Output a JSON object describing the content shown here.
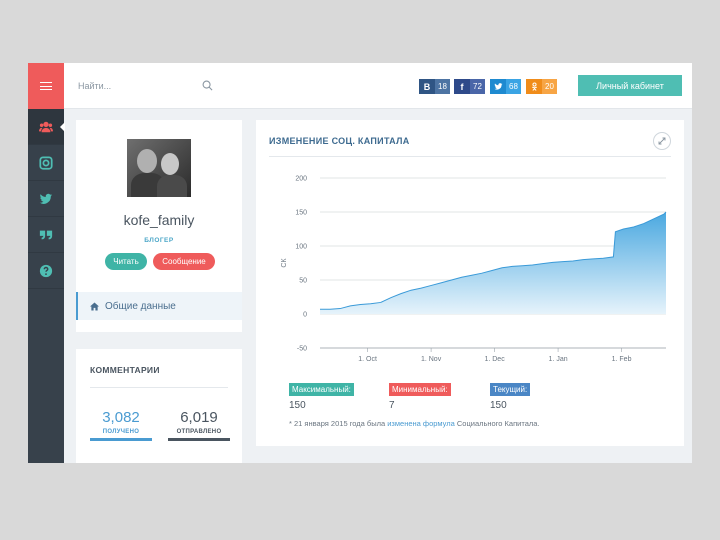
{
  "topbar": {
    "search_placeholder": "Найти...",
    "social": {
      "vk": {
        "icon": "В",
        "count": "18"
      },
      "fb": {
        "icon": "f",
        "count": "72"
      },
      "tw": {
        "icon": "t",
        "count": "68"
      },
      "ok": {
        "icon": "ok",
        "count": "20"
      }
    },
    "cabinet_label": "Личный кабинет"
  },
  "sidebar": {
    "items": [
      "users-icon",
      "instagram-icon",
      "twitter-icon",
      "quote-icon",
      "help-icon"
    ]
  },
  "profile": {
    "username": "kofe_family",
    "role": "БЛОГЕР",
    "read_label": "Читать",
    "message_label": "Сообщение",
    "general_label": "Общие данные"
  },
  "comments": {
    "title": "КОММЕНТАРИИ",
    "received_value": "3,082",
    "received_label": "ПОЛУЧЕНО",
    "sent_value": "6,019",
    "sent_label": "ОТПРАВЛЕНО"
  },
  "chart_card": {
    "title": "ИЗМЕНЕНИЕ СОЦ. КАПИТАЛА",
    "max_label": "Максимальный:",
    "max_value": "150",
    "min_label": "Минимальный:",
    "min_value": "7",
    "cur_label": "Текущий:",
    "cur_value": "150",
    "footnote_pre": "* 21 января 2015 года была ",
    "footnote_link": "изменена формула",
    "footnote_post": " Социального Капитала."
  },
  "chart_data": {
    "type": "area",
    "ylabel": "СК",
    "ylim": [
      -50,
      200
    ],
    "yticks": [
      -50,
      0,
      50,
      100,
      150,
      200
    ],
    "xticks": [
      "1. Oct",
      "1. Nov",
      "1. Dec",
      "1. Jan",
      "1. Feb"
    ],
    "x": [
      0,
      10,
      20,
      30,
      40,
      50,
      60,
      70,
      80,
      90,
      100,
      110,
      120,
      130,
      140,
      150,
      160,
      170,
      180,
      190,
      200,
      210,
      220,
      230,
      240,
      250,
      260,
      270,
      280,
      290,
      292,
      300,
      310,
      320,
      330,
      340,
      342
    ],
    "values": [
      7,
      7,
      8,
      12,
      14,
      15,
      17,
      24,
      30,
      35,
      38,
      42,
      46,
      50,
      54,
      57,
      60,
      64,
      68,
      70,
      71,
      72,
      74,
      76,
      77,
      78,
      80,
      81,
      82,
      84,
      121,
      125,
      128,
      133,
      140,
      147,
      150
    ],
    "grid": true,
    "colors": {
      "fill_top": "#4aa8e0",
      "fill_bottom": "#e6f3fb",
      "line": "#3a9ad8",
      "grid": "#c4c9ce"
    }
  }
}
